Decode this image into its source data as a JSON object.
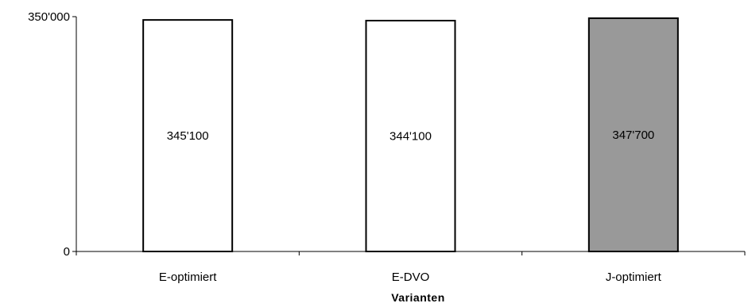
{
  "chart_data": {
    "type": "bar",
    "title": "",
    "xlabel": "Varianten",
    "ylabel": "",
    "categories": [
      "E-optimiert",
      "E-DVO",
      "J-optimiert"
    ],
    "values": [
      345100,
      344100,
      347700
    ],
    "value_labels": [
      "345'100",
      "344'100",
      "347'700"
    ],
    "ylim": [
      0,
      350000
    ],
    "y_ticks": [
      {
        "value": 0,
        "label": "0"
      },
      {
        "value": 350000,
        "label": "350'000"
      }
    ],
    "bar_colors": [
      "#ffffff",
      "#ffffff",
      "#999999"
    ],
    "bar_stroke": "#000000",
    "grid": false,
    "legend": "none"
  }
}
